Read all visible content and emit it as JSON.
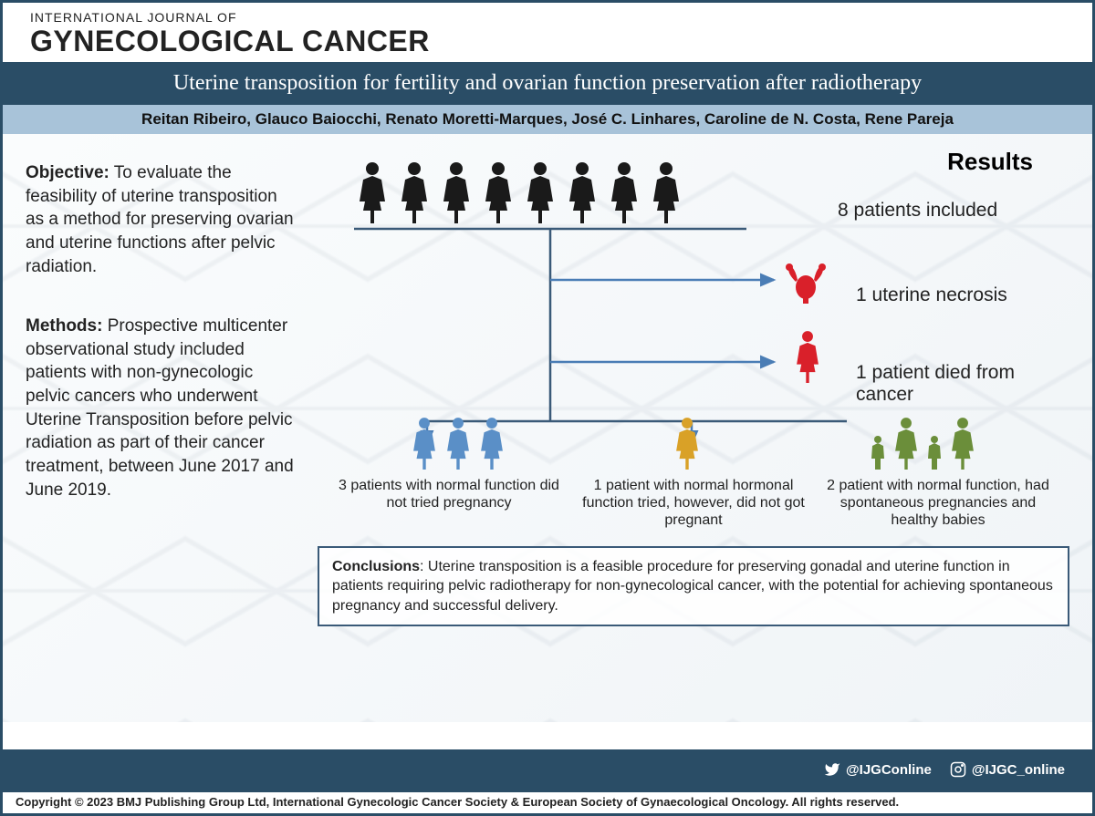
{
  "journal": {
    "line1": "INTERNATIONAL JOURNAL OF",
    "line2": "GYNECOLOGICAL CANCER"
  },
  "title": "Uterine transposition for fertility and ovarian function preservation after radiotherapy",
  "authors": "Reitan Ribeiro, Glauco Baiocchi, Renato Moretti-Marques, José C. Linhares, Caroline de N. Costa, Rene Pareja",
  "objective": {
    "label": "Objective:",
    "text": " To evaluate the feasibility of uterine transposition as a method for preserving ovarian and uterine functions after pelvic radiation."
  },
  "methods": {
    "label": "Methods:",
    "text": " Prospective multicenter observational study included patients with non-gynecologic pelvic cancers who underwent Uterine Transposition before pelvic radiation as part of their cancer treatment, between June 2017 and June 2019."
  },
  "results": {
    "title": "Results",
    "included": {
      "n": 8,
      "label": "8 patients included"
    },
    "necrosis": {
      "n": 1,
      "label": "1 uterine necrosis"
    },
    "died": {
      "n": 1,
      "label": "1 patient died from cancer"
    },
    "branches": [
      {
        "n": 3,
        "label": "3 patients with normal function did not tried pregnancy",
        "color": "#5a8fc7",
        "has_children": false
      },
      {
        "n": 1,
        "label": "1 patient with normal hormonal function tried, however, did not got pregnant",
        "color": "#d9a127",
        "has_children": false
      },
      {
        "n": 2,
        "label": "2 patient with normal function, had spontaneous pregnancies and healthy babies",
        "color": "#6b8e3a",
        "has_children": true
      }
    ]
  },
  "conclusions": {
    "label": "Conclusions",
    "text": ": Uterine transposition is a feasible procedure for preserving gonadal and uterine function in patients requiring pelvic radiotherapy for non-gynecological cancer, with the potential for achieving spontaneous pregnancy and successful delivery."
  },
  "social": {
    "twitter": "@IJGConline",
    "instagram": "@IJGC_online"
  },
  "copyright": "Copyright © 2023 BMJ Publishing Group Ltd, International Gynecologic Cancer Society & European Society of Gynaecological Oncology. All rights reserved.",
  "colors": {
    "header_band": "#2a4d66",
    "authors_band": "#a8c3d9",
    "line": "#3a5a78",
    "black": "#1a1a1a",
    "red": "#d9202a",
    "blue": "#5a8fc7",
    "yellow": "#d9a127",
    "green": "#6b8e3a",
    "arrow": "#4a7db5"
  }
}
